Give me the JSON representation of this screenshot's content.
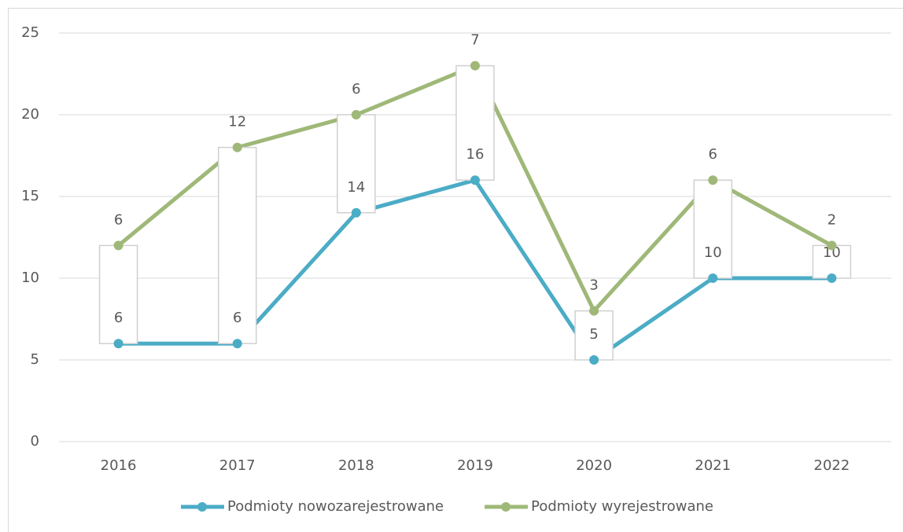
{
  "chart_data": {
    "type": "line",
    "stacked": true,
    "up_down_bars": true,
    "grid": true,
    "legend": "bottom",
    "categories": [
      "2016",
      "2017",
      "2018",
      "2019",
      "2020",
      "2021",
      "2022"
    ],
    "series": [
      {
        "name": "Podmioty nowozarejestrowane",
        "color": "#4bacc6",
        "values": [
          6,
          6,
          14,
          16,
          5,
          10,
          10
        ]
      },
      {
        "name": "Podmioty wyrejestrowane",
        "color": "#9fb878",
        "values": [
          6,
          12,
          6,
          7,
          3,
          6,
          2
        ]
      }
    ],
    "ylim": [
      0,
      25
    ],
    "yticks": [
      0,
      5,
      10,
      15,
      20,
      25
    ]
  }
}
